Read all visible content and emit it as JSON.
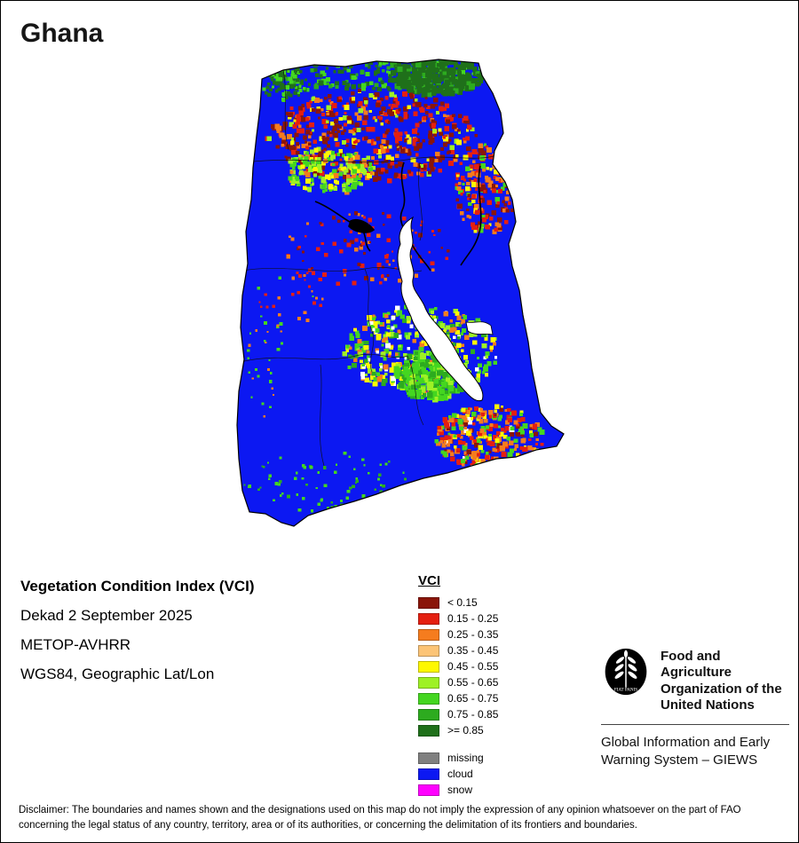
{
  "page": {
    "title": "Ghana"
  },
  "info": {
    "product": "Vegetation Condition Index (VCI)",
    "dekad": "Dekad 2 September 2025",
    "sensor": "METOP-AVHRR",
    "projection": "WGS84, Geographic Lat/Lon"
  },
  "legend": {
    "title": "VCI",
    "classes": [
      {
        "label": "< 0.15",
        "color": "#8a1509"
      },
      {
        "label": "0.15 - 0.25",
        "color": "#e41f10"
      },
      {
        "label": "0.25 - 0.35",
        "color": "#f57c1e"
      },
      {
        "label": "0.35 - 0.45",
        "color": "#fcc476"
      },
      {
        "label": "0.45 - 0.55",
        "color": "#fef800"
      },
      {
        "label": "0.55 - 0.65",
        "color": "#9ef125"
      },
      {
        "label": "0.65 - 0.75",
        "color": "#44d620"
      },
      {
        "label": "0.75 - 0.85",
        "color": "#2dab1f"
      },
      {
        "label": ">= 0.85",
        "color": "#1f701a"
      }
    ],
    "extra": [
      {
        "label": "missing",
        "color": "#7f7f7f"
      },
      {
        "label": "cloud",
        "color": "#0c18f2"
      },
      {
        "label": "snow",
        "color": "#ff00ff"
      }
    ]
  },
  "footer": {
    "org_name": "Food and Agriculture Organization of the United Nations",
    "giews": "Global Information and Early Warning System – GIEWS",
    "fao_motto": "FIAT PANIS",
    "disclaimer": "Disclaimer: The boundaries and names shown and the designations used on this map do not imply the expression of any opinion whatsoever on the part of FAO concerning the legal status of any country, territory, area or of its authorities, or concerning the delimitation of its frontiers and boundaries."
  }
}
